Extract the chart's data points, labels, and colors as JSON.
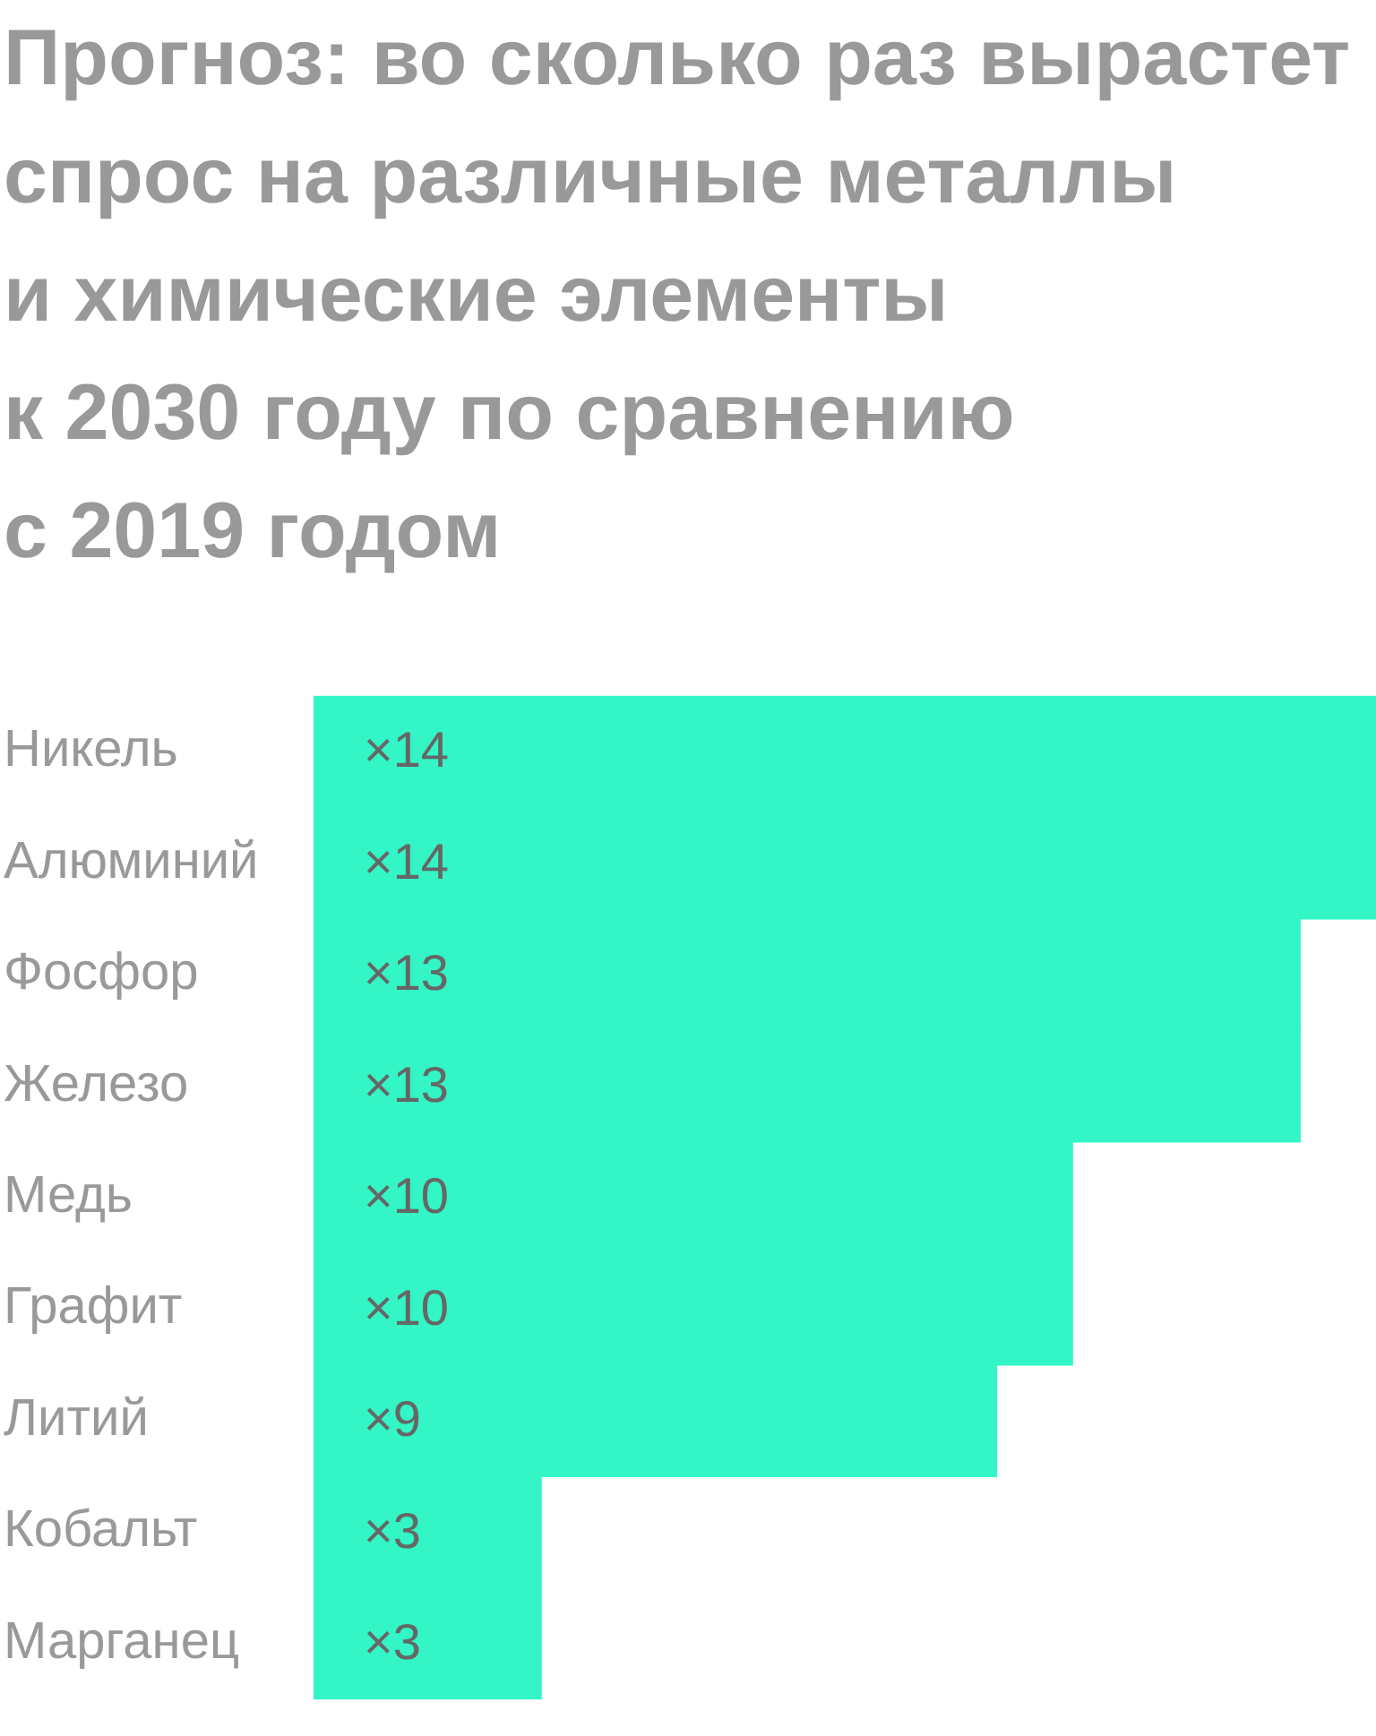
{
  "chart_data": {
    "type": "bar",
    "orientation": "horizontal",
    "title": "Прогноз: во сколько раз вырастет\nспрос на различные металлы\nи химические элементы\nк 2030 году по сравнению\nс 2019 годом",
    "categories": [
      "Никель",
      "Алюминий",
      "Фосфор",
      "Железо",
      "Медь",
      "Графит",
      "Литий",
      "Кобальт",
      "Марганец"
    ],
    "values": [
      14,
      14,
      13,
      13,
      10,
      10,
      9,
      3,
      3
    ],
    "value_labels": [
      "×14",
      "×14",
      "×13",
      "×13",
      "×10",
      "×10",
      "×9",
      "×3",
      "×3"
    ],
    "color": "#33f5c5",
    "xlim": [
      0,
      14
    ],
    "tick_labels": "y"
  }
}
